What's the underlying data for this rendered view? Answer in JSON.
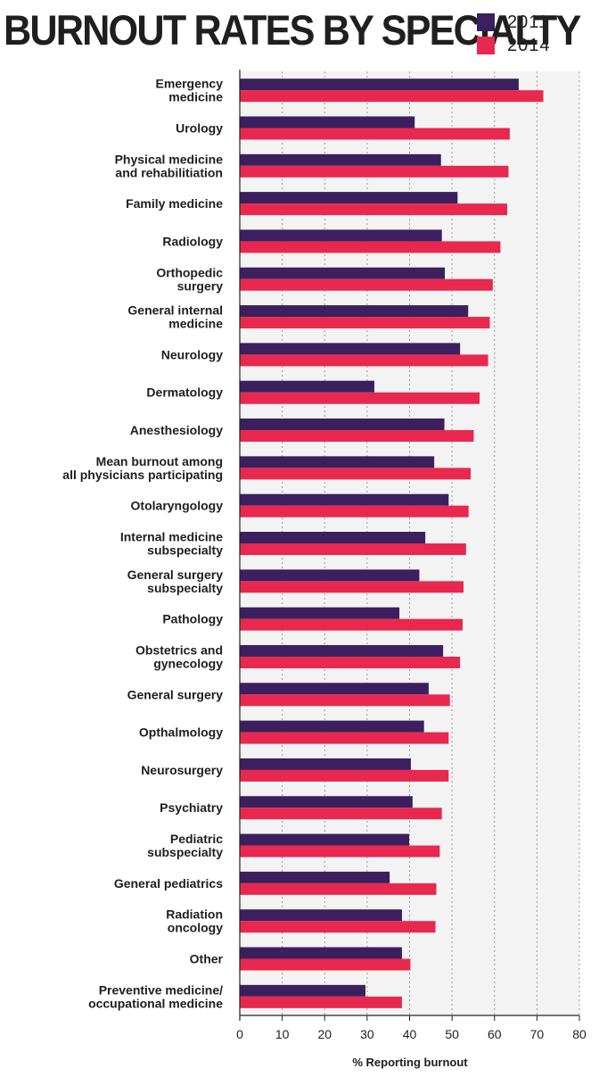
{
  "chart_data": {
    "type": "bar",
    "orientation": "horizontal",
    "title": "BURNOUT RATES BY SPECIALTY",
    "xlabel": "% Reporting burnout",
    "xlim": [
      0,
      80
    ],
    "xticks": [
      "0",
      "10",
      "20",
      "30",
      "40",
      "50",
      "60",
      "70",
      "80"
    ],
    "grid": true,
    "legend_position": "top-right",
    "categories": [
      [
        "Emergency",
        "medicine"
      ],
      [
        "Urology"
      ],
      [
        "Physical medicine",
        "and rehabilitiation"
      ],
      [
        "Family medicine"
      ],
      [
        "Radiology"
      ],
      [
        "Orthopedic",
        "surgery"
      ],
      [
        "General internal",
        "medicine"
      ],
      [
        "Neurology"
      ],
      [
        "Dermatology"
      ],
      [
        "Anesthesiology"
      ],
      [
        "Mean burnout among",
        "all physicians participating"
      ],
      [
        "Otolaryngology"
      ],
      [
        "Internal medicine",
        "subspecialty"
      ],
      [
        "General surgery",
        "subspecialty"
      ],
      [
        "Pathology"
      ],
      [
        "Obstetrics and",
        "gynecology"
      ],
      [
        "General surgery"
      ],
      [
        "Opthalmology"
      ],
      [
        "Neurosurgery"
      ],
      [
        "Psychiatry"
      ],
      [
        "Pediatric",
        "subspecialty"
      ],
      [
        "General pediatrics"
      ],
      [
        "Radiation",
        "oncology"
      ],
      [
        "Other"
      ],
      [
        "Preventive medicine/",
        "occupational medicine"
      ]
    ],
    "series": [
      {
        "name": "2011",
        "color": "#3b1f5e",
        "values": [
          65.7,
          41.2,
          47.4,
          51.3,
          47.6,
          48.3,
          53.8,
          51.9,
          31.7,
          48.2,
          45.8,
          49.2,
          43.7,
          42.3,
          37.6,
          47.9,
          44.5,
          43.4,
          40.3,
          40.7,
          39.9,
          35.3,
          38.2,
          38.2,
          29.6
        ]
      },
      {
        "name": "2014",
        "color": "#e8284e",
        "values": [
          71.5,
          63.6,
          63.3,
          63.0,
          61.4,
          59.6,
          58.9,
          58.5,
          56.5,
          55.1,
          54.4,
          53.9,
          53.3,
          52.7,
          52.5,
          51.9,
          49.5,
          49.2,
          49.2,
          47.6,
          47.1,
          46.3,
          46.1,
          40.2,
          38.2
        ]
      }
    ]
  }
}
